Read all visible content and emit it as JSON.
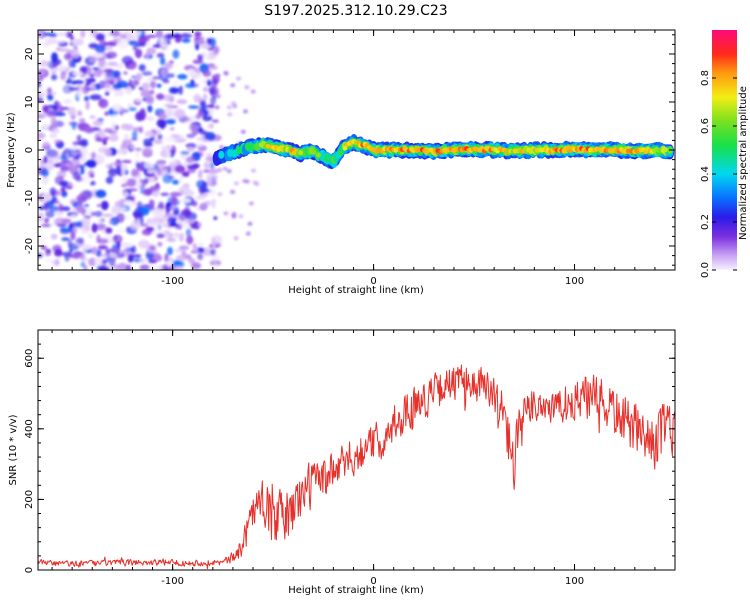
{
  "chart_data": [
    {
      "type": "heatmap",
      "title": "S197.2025.312.10.29.C23",
      "xlabel": "Height of straight line (km)",
      "ylabel": "Frequency (Hz)",
      "xlim": [
        -167,
        150
      ],
      "ylim": [
        -25,
        25
      ],
      "x_ticks": [
        -100,
        0,
        100
      ],
      "x_tick_labels": [
        "-100",
        "0",
        "100"
      ],
      "y_ticks": [
        -20,
        -10,
        0,
        10,
        20
      ],
      "y_tick_labels": [
        "-20",
        "-10",
        "0",
        "10",
        "20"
      ],
      "colorbar": {
        "label": "Normalized spectral amplitude",
        "range": [
          0,
          1
        ],
        "ticks": [
          0.0,
          0.2,
          0.4,
          0.6,
          0.8
        ],
        "tick_labels": [
          "0.0",
          "0.2",
          "0.4",
          "0.6",
          "0.8"
        ]
      },
      "noise_region_x": [
        -167,
        -78
      ],
      "noise_amplitude": [
        0.0,
        0.3
      ],
      "ridge": {
        "x": [
          -78,
          -70,
          -62,
          -55,
          -48,
          -42,
          -36,
          -30,
          -25,
          -20,
          -15,
          -10,
          -5,
          0,
          10,
          20,
          30,
          40,
          50,
          60,
          70,
          80,
          90,
          100,
          110,
          120,
          130,
          140,
          148
        ],
        "freq_hz": [
          -1.5,
          -0.5,
          0.5,
          1.2,
          0.4,
          0.0,
          -0.8,
          -0.3,
          -1.5,
          -2.5,
          0.5,
          1.5,
          1.0,
          0.0,
          0.0,
          0.0,
          -0.3,
          0.0,
          0.2,
          0.0,
          -0.2,
          0.0,
          0.0,
          0.2,
          0.0,
          0.0,
          -0.2,
          0.0,
          -0.3
        ],
        "amplitude": [
          0.25,
          0.35,
          0.45,
          0.6,
          0.7,
          0.75,
          0.7,
          0.6,
          0.5,
          0.45,
          0.6,
          0.75,
          0.85,
          0.9,
          0.95,
          0.95,
          0.85,
          0.95,
          0.9,
          0.8,
          0.7,
          0.75,
          0.95,
          0.95,
          0.95,
          0.8,
          0.9,
          0.75,
          0.5
        ]
      }
    },
    {
      "type": "line",
      "title": "",
      "xlabel": "Height of straight line (km)",
      "ylabel": "SNR (10 * v/v)",
      "xlim": [
        -167,
        150
      ],
      "ylim": [
        0,
        680
      ],
      "x_ticks": [
        -100,
        0,
        100
      ],
      "x_tick_labels": [
        "-100",
        "0",
        "100"
      ],
      "y_ticks": [
        0,
        200,
        400,
        600
      ],
      "y_tick_labels": [
        "0",
        "200",
        "400",
        "600"
      ],
      "color": "#e8302a",
      "series": [
        {
          "name": "SNR",
          "x": [
            -167,
            -150,
            -130,
            -110,
            -90,
            -75,
            -68,
            -64,
            -60,
            -55,
            -50,
            -45,
            -40,
            -35,
            -30,
            -25,
            -20,
            -15,
            -10,
            -5,
            0,
            5,
            10,
            15,
            20,
            25,
            30,
            35,
            40,
            45,
            50,
            55,
            60,
            65,
            68,
            70,
            72,
            75,
            80,
            85,
            90,
            95,
            100,
            105,
            110,
            115,
            120,
            125,
            130,
            135,
            140,
            145,
            150
          ],
          "y": [
            20,
            18,
            20,
            22,
            20,
            22,
            40,
            100,
            170,
            200,
            140,
            150,
            170,
            220,
            250,
            260,
            280,
            300,
            320,
            340,
            360,
            380,
            400,
            440,
            470,
            480,
            500,
            520,
            530,
            530,
            530,
            520,
            480,
            430,
            350,
            290,
            380,
            430,
            470,
            470,
            460,
            460,
            480,
            490,
            480,
            470,
            450,
            420,
            400,
            380,
            360,
            400,
            400
          ],
          "noise_amplitude": [
            10,
            10,
            10,
            10,
            10,
            10,
            20,
            50,
            60,
            70,
            80,
            90,
            90,
            80,
            70,
            70,
            60,
            60,
            60,
            60,
            60,
            60,
            60,
            60,
            60,
            60,
            60,
            60,
            60,
            60,
            60,
            60,
            80,
            90,
            90,
            90,
            90,
            70,
            60,
            60,
            60,
            60,
            60,
            70,
            80,
            80,
            80,
            80,
            80,
            80,
            80,
            90,
            90
          ]
        }
      ]
    }
  ]
}
